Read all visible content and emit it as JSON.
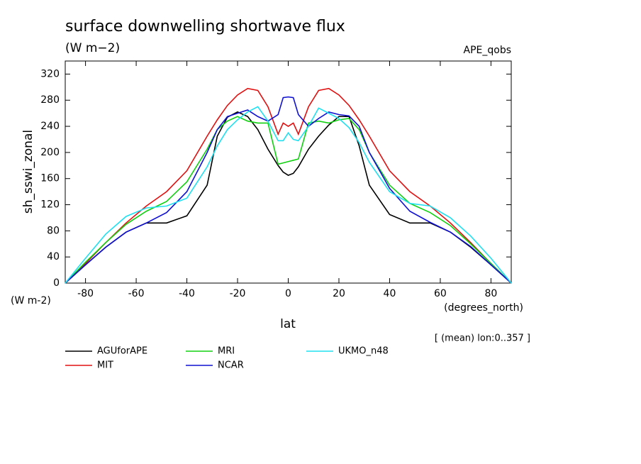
{
  "chart_data": {
    "type": "line",
    "title": "surface downwelling shortwave flux",
    "subtitle": "(W m−2)",
    "corner_label": "APE_qobs",
    "y_label": "sh_sswi_zonal",
    "y_unit_label": "(W m-2)",
    "x_label": "lat",
    "x_unit_label": "(degrees_north)",
    "note": "[ (mean) lon:0..357 ]",
    "x": [
      -88,
      -80,
      -72,
      -64,
      -56,
      -48,
      -40,
      -32,
      -28,
      -24,
      -20,
      -16,
      -12,
      -8,
      -4,
      -2,
      0,
      2,
      4,
      8,
      12,
      16,
      20,
      24,
      28,
      32,
      40,
      48,
      56,
      64,
      72,
      80,
      88
    ],
    "series": [
      {
        "name": "AGUforAPE",
        "color": "#000000",
        "values": [
          0,
          28,
          55,
          78,
          92,
          92,
          103,
          150,
          225,
          254,
          262,
          255,
          235,
          205,
          180,
          170,
          165,
          168,
          178,
          205,
          225,
          242,
          255,
          255,
          210,
          150,
          105,
          92,
          92,
          78,
          55,
          28,
          0
        ]
      },
      {
        "name": "MIT",
        "color": "#e01010",
        "values": [
          0,
          30,
          62,
          92,
          118,
          140,
          172,
          225,
          250,
          272,
          288,
          298,
          295,
          270,
          228,
          245,
          240,
          245,
          228,
          270,
          295,
          298,
          288,
          272,
          250,
          225,
          172,
          140,
          118,
          92,
          62,
          30,
          0
        ]
      },
      {
        "name": "MRI",
        "color": "#10d010",
        "values": [
          0,
          32,
          62,
          90,
          110,
          125,
          155,
          205,
          235,
          248,
          255,
          248,
          245,
          245,
          182,
          184,
          186,
          188,
          190,
          245,
          248,
          245,
          250,
          252,
          235,
          200,
          150,
          122,
          108,
          88,
          60,
          30,
          0
        ]
      },
      {
        "name": "NCAR",
        "color": "#1010d0",
        "values": [
          0,
          28,
          55,
          78,
          92,
          108,
          140,
          200,
          235,
          255,
          260,
          265,
          255,
          248,
          258,
          284,
          285,
          284,
          258,
          240,
          252,
          262,
          258,
          256,
          240,
          200,
          145,
          110,
          93,
          78,
          56,
          28,
          0
        ]
      },
      {
        "name": "UKMO_n48",
        "color": "#20e0f0",
        "values": [
          0,
          38,
          75,
          102,
          115,
          118,
          130,
          178,
          210,
          235,
          250,
          262,
          270,
          248,
          218,
          218,
          230,
          220,
          218,
          240,
          268,
          260,
          252,
          238,
          215,
          185,
          140,
          122,
          118,
          100,
          72,
          38,
          0
        ]
      }
    ],
    "xlim": [
      -88,
      88
    ],
    "xticks": [
      -80,
      -60,
      -40,
      -20,
      0,
      20,
      40,
      60,
      80
    ],
    "ylim": [
      0,
      340
    ],
    "yticks": [
      0,
      40,
      80,
      120,
      160,
      200,
      240,
      280,
      320
    ]
  }
}
